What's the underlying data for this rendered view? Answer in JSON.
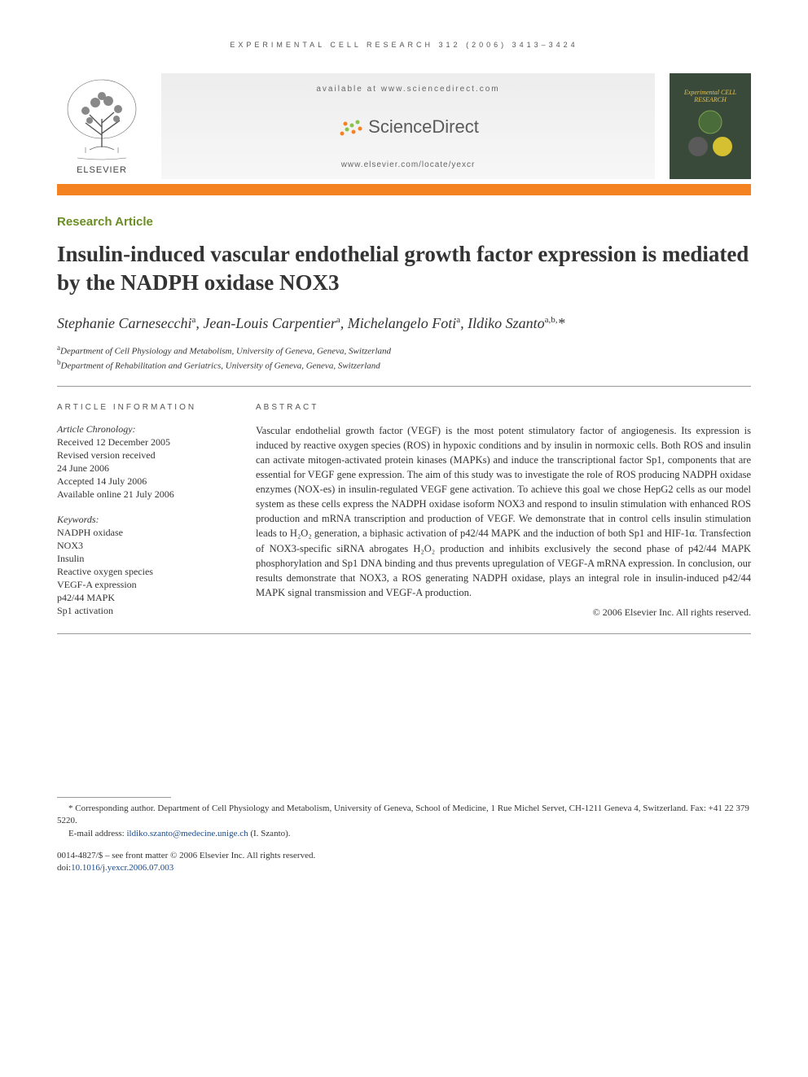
{
  "running_head": "EXPERIMENTAL CELL RESEARCH 312 (2006) 3413–3424",
  "header": {
    "available_at": "available at www.sciencedirect.com",
    "brand": "ScienceDirect",
    "locate": "www.elsevier.com/locate/yexcr",
    "publisher": "ELSEVIER",
    "journal_cover": "Experimental CELL RESEARCH"
  },
  "colors": {
    "accent_bar": "#f58220",
    "article_type": "#6b8e23",
    "link": "#1a4b8c",
    "sd_orange": "#f58220",
    "sd_green": "#8bc34a",
    "sd_text": "#5a5a5a"
  },
  "article_type": "Research Article",
  "title": "Insulin-induced vascular endothelial growth factor expression is mediated by the NADPH oxidase NOX3",
  "authors_html": "Stephanie Carnesecchi<sup>a</sup>, Jean-Louis Carpentier<sup>a</sup>, Michelangelo Foti<sup>a</sup>, Ildiko Szanto<sup>a,b,</sup>*",
  "affiliations": [
    {
      "sup": "a",
      "text": "Department of Cell Physiology and Metabolism, University of Geneva, Geneva, Switzerland"
    },
    {
      "sup": "b",
      "text": "Department of Rehabilitation and Geriatrics, University of Geneva, Geneva, Switzerland"
    }
  ],
  "info": {
    "section_label": "ARTICLE INFORMATION",
    "chron_label": "Article Chronology:",
    "chronology": [
      "Received 12 December 2005",
      "Revised version received",
      "24 June 2006",
      "Accepted 14 July 2006",
      "Available online 21 July 2006"
    ],
    "kw_label": "Keywords:",
    "keywords": [
      "NADPH oxidase",
      "NOX3",
      "Insulin",
      "Reactive oxygen species",
      "VEGF-A expression",
      "p42/44 MAPK",
      "Sp1 activation"
    ]
  },
  "abstract": {
    "label": "ABSTRACT",
    "text": "Vascular endothelial growth factor (VEGF) is the most potent stimulatory factor of angiogenesis. Its expression is induced by reactive oxygen species (ROS) in hypoxic conditions and by insulin in normoxic cells. Both ROS and insulin can activate mitogen-activated protein kinases (MAPKs) and induce the transcriptional factor Sp1, components that are essential for VEGF gene expression. The aim of this study was to investigate the role of ROS producing NADPH oxidase enzymes (NOX-es) in insulin-regulated VEGF gene activation. To achieve this goal we chose HepG2 cells as our model system as these cells express the NADPH oxidase isoform NOX3 and respond to insulin stimulation with enhanced ROS production and mRNA transcription and production of VEGF. We demonstrate that in control cells insulin stimulation leads to H₂O₂ generation, a biphasic activation of p42/44 MAPK and the induction of both Sp1 and HIF-1α. Transfection of NOX3-specific siRNA abrogates H₂O₂ production and inhibits exclusively the second phase of p42/44 MAPK phosphorylation and Sp1 DNA binding and thus prevents upregulation of VEGF-A mRNA expression. In conclusion, our results demonstrate that NOX3, a ROS generating NADPH oxidase, plays an integral role in insulin-induced p42/44 MAPK signal transmission and VEGF-A production.",
    "copyright": "© 2006 Elsevier Inc. All rights reserved."
  },
  "footnotes": {
    "corresponding": "* Corresponding author. Department of Cell Physiology and Metabolism, University of Geneva, School of Medicine, 1 Rue Michel Servet, CH-1211 Geneva 4, Switzerland. Fax: +41 22 379 5220.",
    "email_label": "E-mail address:",
    "email": "ildiko.szanto@medecine.unige.ch",
    "email_suffix": "(I. Szanto)."
  },
  "doi_block": {
    "line1": "0014-4827/$ – see front matter © 2006 Elsevier Inc. All rights reserved.",
    "doi_label": "doi:",
    "doi": "10.1016/j.yexcr.2006.07.003"
  }
}
